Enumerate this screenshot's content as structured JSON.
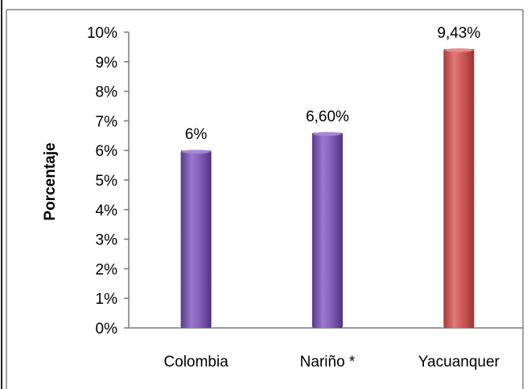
{
  "chart_data": {
    "type": "bar",
    "title": "",
    "xlabel": "",
    "ylabel": "Porcentaje",
    "ylim": [
      0,
      10
    ],
    "yticks": [
      0,
      1,
      2,
      3,
      4,
      5,
      6,
      7,
      8,
      9,
      10
    ],
    "ytick_labels": [
      "0%",
      "1%",
      "2%",
      "3%",
      "4%",
      "5%",
      "6%",
      "7%",
      "8%",
      "9%",
      "10%"
    ],
    "categories": [
      "Colombia",
      "Nariño *",
      "Yacuanquer"
    ],
    "values": [
      6,
      6.6,
      9.43
    ],
    "data_labels": [
      "6%",
      "6,60%",
      "9,43%"
    ],
    "bar_colors": [
      "#7f5bb3",
      "#7f5bb3",
      "#d05a58"
    ],
    "grid": false,
    "legend": "none"
  }
}
